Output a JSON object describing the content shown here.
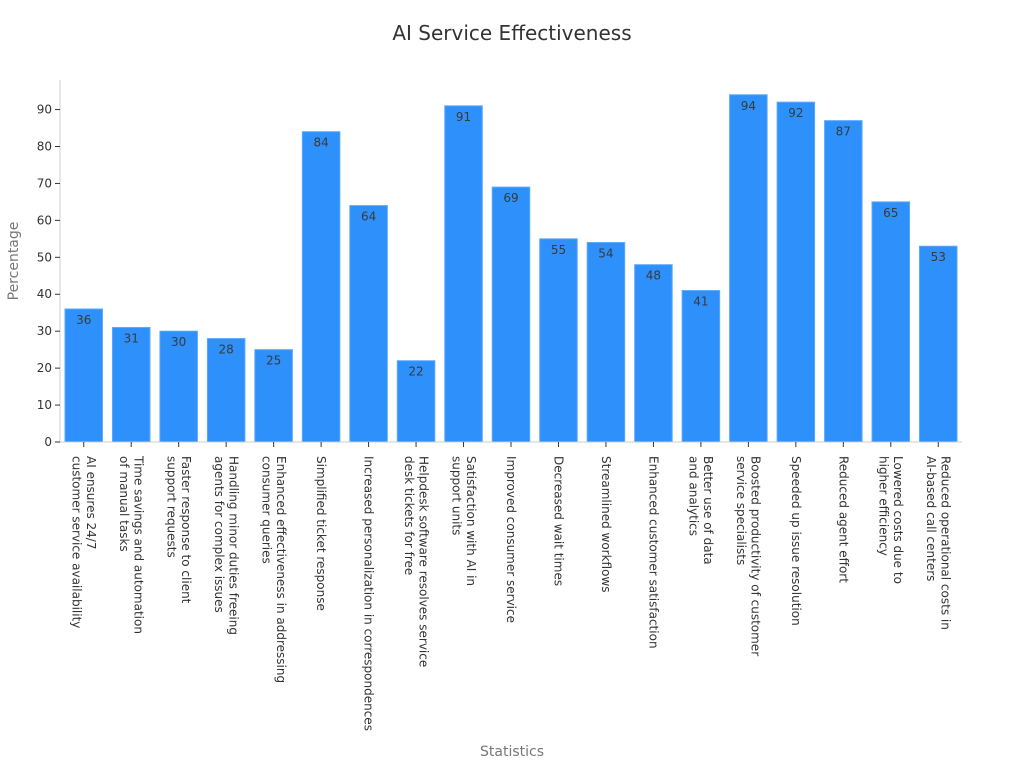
{
  "chart_data": {
    "type": "bar",
    "title": "AI Service Effectiveness",
    "xlabel": "Statistics",
    "ylabel": "Percentage",
    "ylim": [
      0,
      98
    ],
    "yticks": [
      0,
      10,
      20,
      30,
      40,
      50,
      60,
      70,
      80,
      90
    ],
    "grid": false,
    "bar_color": "#2e90fa",
    "categories": [
      [
        "AI ensures 24/7",
        "customer service availability"
      ],
      [
        "Time savings and automation",
        "of manual tasks"
      ],
      [
        "Faster response to client",
        "support requests"
      ],
      [
        "Handling minor duties freeing",
        "agents for complex issues"
      ],
      [
        "Enhanced effectiveness in addressing",
        "consumer queries"
      ],
      [
        "Simplified ticket response"
      ],
      [
        "Increased personalization in correspondences"
      ],
      [
        "Helpdesk software resolves service",
        "desk tickets for free"
      ],
      [
        "Satisfaction with AI in",
        "support units"
      ],
      [
        "Improved consumer service"
      ],
      [
        "Decreased wait times"
      ],
      [
        "Streamlined workflows"
      ],
      [
        "Enhanced customer satisfaction"
      ],
      [
        "Better use of data",
        "and analytics"
      ],
      [
        "Boosted productivity of customer",
        "service specialists"
      ],
      [
        "Speeded up issue resolution"
      ],
      [
        "Reduced agent effort"
      ],
      [
        "Lowered costs due to",
        "higher efficiency"
      ],
      [
        "Reduced operational costs in",
        "AI-based call centers"
      ]
    ],
    "values": [
      36,
      31,
      30,
      28,
      25,
      84,
      64,
      22,
      91,
      69,
      55,
      54,
      48,
      41,
      94,
      92,
      87,
      65,
      53
    ]
  }
}
